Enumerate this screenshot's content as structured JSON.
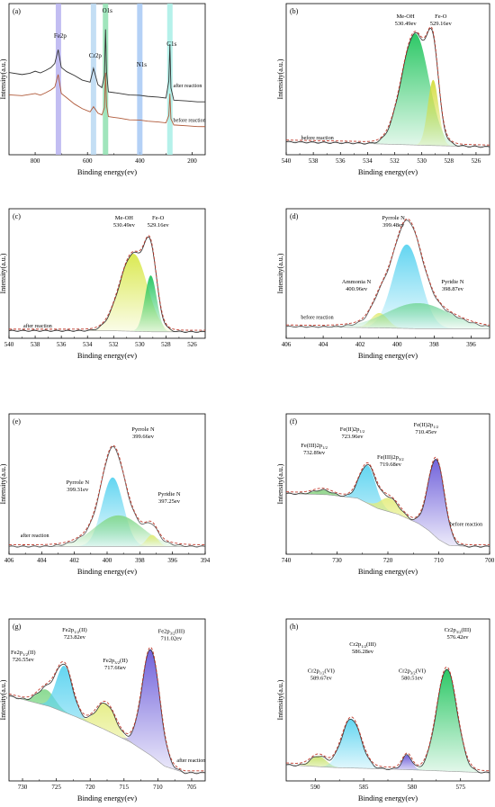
{
  "chart_data": [
    {
      "panel": "(a)",
      "type": "line",
      "xlabel": "Binding energy(ev)",
      "ylabel": "Intensity(a.u.)",
      "xlim": [
        900,
        150
      ],
      "xticks": [
        800,
        600,
        400,
        200
      ],
      "ylim": [
        0,
        1
      ],
      "peak_markers": [
        {
          "label": "Fe2p",
          "x": 711,
          "color": "#b7b2f0"
        },
        {
          "label": "Cr2p",
          "x": 577,
          "color": "#b9d8f2"
        },
        {
          "label": "O1s",
          "x": 531,
          "color": "#8fe0b0"
        },
        {
          "label": "N1s",
          "x": 400,
          "color": "#a7c9f5"
        },
        {
          "label": "C1s",
          "x": 285,
          "color": "#a8efe6"
        }
      ],
      "series": [
        {
          "name": "after reaction",
          "color": "#333333",
          "x": [
            900,
            850,
            820,
            800,
            780,
            760,
            740,
            725,
            712,
            700,
            680,
            650,
            620,
            590,
            577,
            560,
            545,
            535,
            531,
            527,
            520,
            480,
            440,
            400,
            370,
            330,
            300,
            289,
            285,
            281,
            270,
            220,
            180,
            150
          ],
          "y": [
            0.62,
            0.6,
            0.61,
            0.63,
            0.62,
            0.64,
            0.66,
            0.69,
            0.8,
            0.66,
            0.63,
            0.6,
            0.56,
            0.54,
            0.65,
            0.52,
            0.5,
            0.6,
            0.97,
            0.62,
            0.46,
            0.45,
            0.44,
            0.44,
            0.43,
            0.42,
            0.41,
            0.55,
            0.85,
            0.5,
            0.4,
            0.39,
            0.38,
            0.38
          ]
        },
        {
          "name": "before reaction",
          "color": "#b05a3a",
          "x": [
            900,
            850,
            820,
            800,
            780,
            760,
            740,
            725,
            712,
            700,
            680,
            650,
            620,
            590,
            577,
            560,
            545,
            535,
            531,
            527,
            520,
            480,
            440,
            400,
            370,
            330,
            300,
            289,
            285,
            281,
            270,
            220,
            180,
            150
          ],
          "y": [
            0.44,
            0.43,
            0.44,
            0.45,
            0.44,
            0.46,
            0.48,
            0.5,
            0.6,
            0.45,
            0.42,
            0.37,
            0.33,
            0.3,
            0.34,
            0.29,
            0.28,
            0.34,
            0.62,
            0.35,
            0.26,
            0.25,
            0.24,
            0.24,
            0.23,
            0.22,
            0.21,
            0.27,
            0.45,
            0.25,
            0.2,
            0.19,
            0.18,
            0.18
          ]
        }
      ],
      "annotations": [
        {
          "text": "after reaction",
          "x": 272,
          "y": 0.5
        },
        {
          "text": "before reaction",
          "x": 272,
          "y": 0.22
        }
      ]
    },
    {
      "panel": "(b)",
      "type": "area",
      "xlabel": "Binding energy(ev)",
      "ylabel": "Intensity(a.u.)",
      "xlim": [
        540,
        525
      ],
      "xticks": [
        540,
        538,
        536,
        534,
        532,
        530,
        528,
        526
      ],
      "ylim": [
        0,
        1
      ],
      "background": [
        [
          540,
          0.06
        ],
        [
          535,
          0.05
        ],
        [
          532,
          0.04
        ],
        [
          529,
          0.03
        ],
        [
          525,
          0.02
        ]
      ],
      "components": [
        {
          "name": "Me-OH",
          "center": 530.49,
          "height": 0.9,
          "width": 1.0,
          "color": "#22c55e"
        },
        {
          "name": "Fe-O",
          "center": 529.16,
          "height": 0.53,
          "width": 0.4,
          "color": "#d4dc3c"
        }
      ],
      "envelope_color": "#2b2b2b",
      "fit_color": "#c0392b",
      "peak_labels": [
        {
          "text": [
            "Me-OH",
            "530.49ev"
          ],
          "x": 531.2,
          "y": 1.0
        },
        {
          "text": [
            "Fe-O",
            "529.16ev"
          ],
          "x": 528.6,
          "y": 1.0
        }
      ],
      "annotations": [
        {
          "text": "before reaction",
          "x": 538.9,
          "y": 0.08
        }
      ]
    },
    {
      "panel": "(c)",
      "type": "area",
      "xlabel": "Binding energy(ev)",
      "ylabel": "Intensity(a.u.)",
      "xlim": [
        540,
        525
      ],
      "xticks": [
        540,
        538,
        536,
        534,
        532,
        530,
        528,
        526
      ],
      "ylim": [
        0,
        1
      ],
      "background": [
        [
          540,
          0.02
        ],
        [
          535,
          0.02
        ],
        [
          532,
          0.02
        ],
        [
          529,
          0.01
        ],
        [
          525,
          0.01
        ]
      ],
      "components": [
        {
          "name": "Me-OH",
          "center": 530.49,
          "height": 0.73,
          "width": 1.05,
          "color": "#d9e84a"
        },
        {
          "name": "Fe-O",
          "center": 529.16,
          "height": 0.53,
          "width": 0.45,
          "color": "#22c55e"
        }
      ],
      "envelope_color": "#2b2b2b",
      "fit_color": "#c0392b",
      "peak_labels": [
        {
          "text": [
            "Me-OH",
            "530.49ev"
          ],
          "x": 531.2,
          "y": 1.0
        },
        {
          "text": [
            "Fe-O",
            "529.16ev"
          ],
          "x": 528.6,
          "y": 1.0
        }
      ],
      "annotations": [
        {
          "text": "after reaction",
          "x": 538.9,
          "y": 0.05
        }
      ]
    },
    {
      "panel": "(d)",
      "type": "area",
      "xlabel": "Binding energy(ev)",
      "ylabel": "Intensity(a.u.)",
      "xlim": [
        406,
        395
      ],
      "xticks": [
        406,
        404,
        402,
        400,
        398,
        396
      ],
      "ylim": [
        0,
        1
      ],
      "background": [
        [
          406,
          0.06
        ],
        [
          402,
          0.05
        ],
        [
          399,
          0.04
        ],
        [
          395,
          0.04
        ]
      ],
      "components": [
        {
          "name": "Pyrrole N",
          "center": 399.48,
          "height": 0.79,
          "width": 0.75,
          "color": "#5bd3f0"
        },
        {
          "name": "Ammonia N",
          "center": 400.96,
          "height": 0.14,
          "width": 0.45,
          "color": "#e3ec7a"
        },
        {
          "name": "Pyridie N",
          "center": 398.87,
          "height": 0.24,
          "width": 1.7,
          "color": "#7ed9a4"
        }
      ],
      "envelope_color": "#555555",
      "fit_color": "#c0392b",
      "peak_labels": [
        {
          "text": [
            "Pyrrole N",
            "399.48ev"
          ],
          "x": 400.2,
          "y": 1.0
        },
        {
          "text": [
            "Ammonia N",
            "400.96ev"
          ],
          "x": 402.2,
          "y": 0.4
        },
        {
          "text": [
            "Pyridie N",
            "398.87ev"
          ],
          "x": 397.0,
          "y": 0.4
        }
      ],
      "annotations": [
        {
          "text": "before reaction",
          "x": 405.2,
          "y": 0.13
        }
      ]
    },
    {
      "panel": "(e)",
      "type": "area",
      "xlabel": "Binding energy(ev)",
      "ylabel": "Intensity(a.u.)",
      "xlim": [
        406,
        394
      ],
      "xticks": [
        406,
        404,
        402,
        400,
        398,
        396,
        394
      ],
      "ylim": [
        0,
        1
      ],
      "background": [
        [
          406,
          0.02
        ],
        [
          402,
          0.02
        ],
        [
          399,
          0.02
        ],
        [
          394,
          0.02
        ]
      ],
      "components": [
        {
          "name": "Pyrrole N",
          "center": 399.66,
          "height": 0.6,
          "width": 0.65,
          "color": "#5bd3f0"
        },
        {
          "name": "Pyrrole N",
          "center": 399.31,
          "height": 0.27,
          "width": 1.45,
          "color": "#86d98e"
        },
        {
          "name": "Pyridie N",
          "center": 397.25,
          "height": 0.1,
          "width": 0.35,
          "color": "#e3ec7a"
        }
      ],
      "envelope_color": "#555555",
      "fit_color": "#c0392b",
      "peak_labels": [
        {
          "text": [
            "Pyrrole N",
            "399.66ev"
          ],
          "x": 397.8,
          "y": 0.96
        },
        {
          "text": [
            "Pyrrole N",
            "399.31ev"
          ],
          "x": 401.8,
          "y": 0.5
        },
        {
          "text": [
            "Pyridie N",
            "397.25ev"
          ],
          "x": 396.2,
          "y": 0.4
        }
      ],
      "annotations": [
        {
          "text": "after reaction",
          "x": 405.3,
          "y": 0.1
        }
      ]
    },
    {
      "panel": "(f)",
      "type": "area",
      "xlabel": "Binding energy(ev)",
      "ylabel": "Intensity(a.u.)",
      "xlim": [
        740,
        700
      ],
      "xticks": [
        740,
        730,
        720,
        710,
        700
      ],
      "ylim": [
        0,
        1
      ],
      "background": [
        [
          740,
          0.48
        ],
        [
          732,
          0.47
        ],
        [
          726,
          0.44
        ],
        [
          722,
          0.35
        ],
        [
          718,
          0.3
        ],
        [
          714,
          0.22
        ],
        [
          712,
          0.16
        ],
        [
          710,
          0.08
        ],
        [
          708,
          0.03
        ],
        [
          704,
          0.02
        ],
        [
          700,
          0.02
        ]
      ],
      "components": [
        {
          "name": "Fe(III)2p1/2",
          "center": 732.89,
          "height": 0.04,
          "width": 1.8,
          "color": "#8fd48a"
        },
        {
          "name": "Fe(II)2p1/2",
          "center": 723.96,
          "height": 0.33,
          "width": 1.6,
          "color": "#5bd3f0"
        },
        {
          "name": "Fe(III)2p3/2",
          "center": 719.68,
          "height": 0.12,
          "width": 1.8,
          "color": "#e3ec7a"
        },
        {
          "name": "Fe(II)2p1/2",
          "center": 710.45,
          "height": 0.68,
          "width": 1.6,
          "color": "#6a5ad9"
        }
      ],
      "envelope_color": "#333333",
      "fit_color": "#c0392b",
      "peak_labels": [
        {
          "text": [
            "Fe(III)2p1/2",
            "732.89ev"
          ],
          "x": 734.5,
          "y": 0.82
        },
        {
          "text": [
            "Fe(II)2p1/2",
            "723.96ev"
          ],
          "x": 727.0,
          "y": 0.96
        },
        {
          "text": [
            "Fe(III)2p3/2",
            "719.68ev"
          ],
          "x": 719.5,
          "y": 0.72
        },
        {
          "text": [
            "Fe(II)2p1/2",
            "710.45ev"
          ],
          "x": 712.5,
          "y": 1.0
        }
      ],
      "annotations": [
        {
          "text": "before reaction",
          "x": 707.8,
          "y": 0.2
        }
      ]
    },
    {
      "panel": "(g)",
      "type": "area",
      "xlabel": "Binding energy(ev)",
      "ylabel": "Intensity(a.u.)",
      "xlim": [
        732,
        703
      ],
      "xticks": [
        730,
        725,
        720,
        715,
        710,
        705
      ],
      "ylim": [
        0,
        1
      ],
      "background": [
        [
          732,
          0.6
        ],
        [
          726,
          0.52
        ],
        [
          722,
          0.44
        ],
        [
          718,
          0.35
        ],
        [
          714,
          0.25
        ],
        [
          711,
          0.15
        ],
        [
          709,
          0.07
        ],
        [
          706,
          0.02
        ],
        [
          703,
          0.02
        ]
      ],
      "components": [
        {
          "name": "Fe2p1/2(II)",
          "center": 726.55,
          "height": 0.12,
          "width": 1.3,
          "color": "#86d98e"
        },
        {
          "name": "Fe2p1/2(II)",
          "center": 723.82,
          "height": 0.35,
          "width": 1.2,
          "color": "#5bd3f0"
        },
        {
          "name": "Fe2p3/2(II)",
          "center": 717.66,
          "height": 0.2,
          "width": 1.4,
          "color": "#e3ec7a"
        },
        {
          "name": "Fe2p3/2(III)",
          "center": 711.02,
          "height": 0.8,
          "width": 1.3,
          "color": "#6a5ad9"
        }
      ],
      "envelope_color": "#333333",
      "fit_color": "#c0392b",
      "peak_labels": [
        {
          "text": [
            "Fe2p1/2(II)",
            "726.55ev"
          ],
          "x": 729.9,
          "y": 0.86
        },
        {
          "text": [
            "Fe2p1/2(II)",
            "723.82ev"
          ],
          "x": 722.3,
          "y": 1.03
        },
        {
          "text": [
            "Fe2p3/2(II)",
            "717.66ev"
          ],
          "x": 716.3,
          "y": 0.8
        },
        {
          "text": [
            "Fe2p3/2(III)",
            "711.02ev"
          ],
          "x": 708.0,
          "y": 1.02
        }
      ],
      "annotations": [
        {
          "text": "after reaction",
          "x": 707.2,
          "y": 0.1
        }
      ]
    },
    {
      "panel": "(h)",
      "type": "area",
      "xlabel": "Binding energy(ev)",
      "ylabel": "Intensity(a.u.)",
      "xlim": [
        593,
        572
      ],
      "xticks": [
        590,
        585,
        580,
        575
      ],
      "ylim": [
        0,
        1
      ],
      "background": [
        [
          593,
          0.08
        ],
        [
          588,
          0.06
        ],
        [
          583,
          0.05
        ],
        [
          579,
          0.04
        ],
        [
          572,
          0.02
        ]
      ],
      "components": [
        {
          "name": "Cr2p1/2(VI)",
          "center": 589.67,
          "height": 0.08,
          "width": 0.8,
          "color": "#c7e26a"
        },
        {
          "name": "Cr2p1/2(III)",
          "center": 586.28,
          "height": 0.37,
          "width": 1.0,
          "color": "#5bd3f0"
        },
        {
          "name": "Cr2p3/2(VI)",
          "center": 580.51,
          "height": 0.11,
          "width": 0.5,
          "color": "#6a5ad9"
        },
        {
          "name": "Cr2p3/2(III)",
          "center": 576.42,
          "height": 0.77,
          "width": 1.05,
          "color": "#22c55e"
        }
      ],
      "envelope_color": "#333333",
      "fit_color": "#c0392b",
      "peak_labels": [
        {
          "text": [
            "Cr2p1/2(VI)",
            "589.67ev"
          ],
          "x": 589.4,
          "y": 0.72
        },
        {
          "text": [
            "Cr2p1/2(III)",
            "586.28ev"
          ],
          "x": 585.1,
          "y": 0.92
        },
        {
          "text": [
            "Cr2p3/2(VI)",
            "580.51ev"
          ],
          "x": 580.0,
          "y": 0.72
        },
        {
          "text": [
            "Cr2p3/2(III)",
            "576.42ev"
          ],
          "x": 575.3,
          "y": 1.03
        }
      ],
      "annotations": []
    }
  ]
}
